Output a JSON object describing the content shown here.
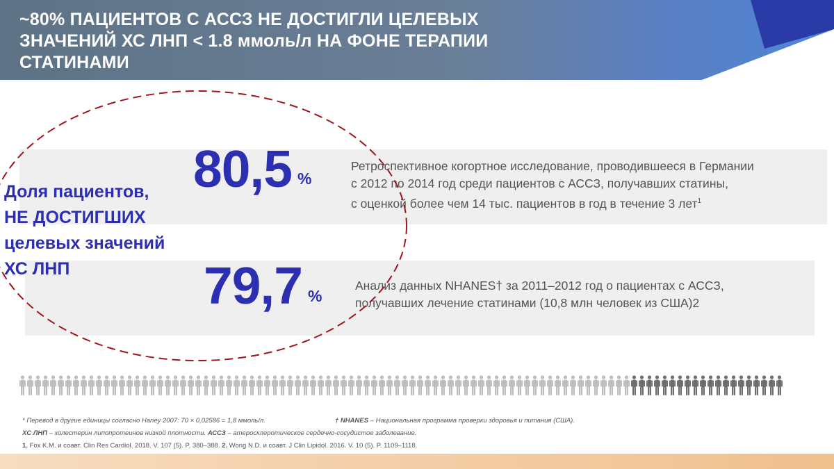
{
  "header": {
    "title_lines": [
      "~80% ПАЦИЕНТОВ С АССЗ НЕ ДОСТИГЛИ ЦЕЛЕВЫХ",
      "ЗНАЧЕНИЙ ХС ЛНП < 1.8 ммоль/л НА ФОНЕ ТЕРАПИИ",
      "СТАТИНАМИ"
    ]
  },
  "side_label_lines": [
    "Доля пациентов,",
    "НЕ ДОСТИГШИХ",
    "целевых значений",
    "ХС ЛНП"
  ],
  "stats": [
    {
      "value": "80,5",
      "unit": "%",
      "description_lines": [
        "Ретроспективное когортное исследование, проводившееся в Германии",
        "с 2012 по 2014 год среди пациентов с АССЗ, получавших статины,",
        "с оценкой более чем 14 тыс. пациентов в год в течение 3 лет"
      ],
      "description_sup": "1"
    },
    {
      "value": "79,7",
      "unit": "%",
      "description_lines": [
        "Анализ данных NHANES† за 2011–2012 год о пациентах с АССЗ,",
        "получавших лечение статинами (10,8 млн человек из США)2"
      ]
    }
  ],
  "people_row": {
    "total": 100,
    "highlighted": 80,
    "color_light": "#bdbdbd",
    "color_dark": "#6d6d6d"
  },
  "footnotes": {
    "conversion": "* Перевод в другие единицы согласно Haney 2007: 70 × 0,02586 = 1,8 ммоль/л.",
    "nhanes_term": "† NHANES",
    "nhanes_def": " – Национальная программа проверки здоровья и питания (США).",
    "abbr_term1": "ХС ЛНП",
    "abbr_def1": " – холестерин липопротеинов низкой плотности. ",
    "abbr_term2": "АССЗ",
    "abbr_def2": " – атеросклеротическое сердечно-сосудистое заболевание.",
    "ref1_num": "1.",
    "ref1": " Fox K.M. и соавт. Clin Res Cardiol. 2018. V. 107 (5). P. 380–388. ",
    "ref2_num": "2.",
    "ref2": " Wong N.D. и соавт. J Clin Lipidol. 2016. V. 10 (5). P. 1109–1118."
  },
  "colors": {
    "accent_blue": "#2b2fb0",
    "header_gray": "#5b7284",
    "header_blue": "#2b3fae",
    "ellipse_red": "#a0141e",
    "bottom_strip": "#f2c79a"
  }
}
